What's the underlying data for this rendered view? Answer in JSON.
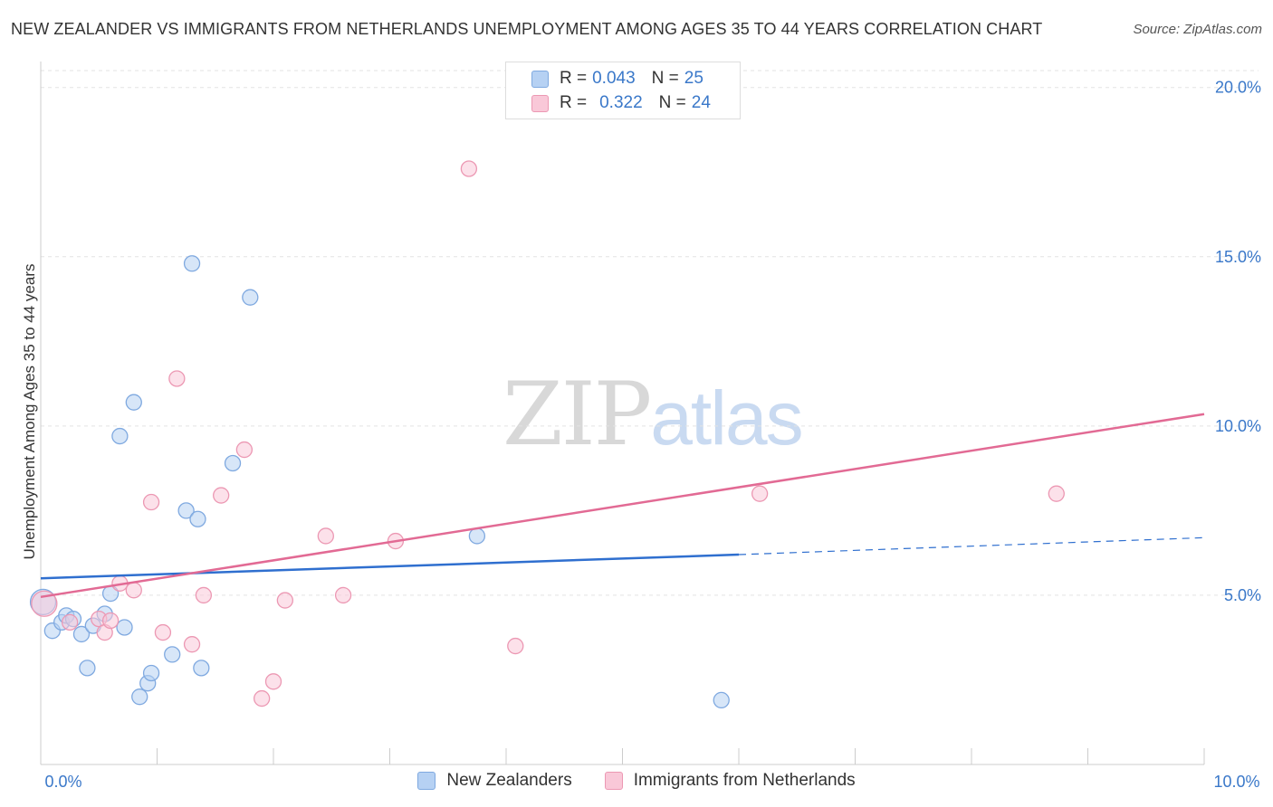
{
  "title": "NEW ZEALANDER VS IMMIGRANTS FROM NETHERLANDS UNEMPLOYMENT AMONG AGES 35 TO 44 YEARS CORRELATION CHART",
  "source": "Source: ZipAtlas.com",
  "watermark": {
    "part1": "ZIP",
    "part2": "atlas"
  },
  "legend": {
    "rows": [
      {
        "r_label": "R =",
        "r_value": "0.043",
        "n_label": "N =",
        "n_value": "25",
        "color": "#b6d1f3",
        "border": "#7fa9e0"
      },
      {
        "r_label": "R =",
        "r_value": "0.322",
        "n_label": "N =",
        "n_value": "24",
        "color": "#f9c8d8",
        "border": "#ec98b3"
      }
    ]
  },
  "chart_data": {
    "type": "scatter",
    "title": "NEW ZEALANDER VS IMMIGRANTS FROM NETHERLANDS UNEMPLOYMENT AMONG AGES 35 TO 44 YEARS CORRELATION CHART",
    "xlabel": "",
    "ylabel": "Unemployment Among Ages 35 to 44 years",
    "xlim": [
      0,
      10
    ],
    "ylim": [
      0,
      20.5
    ],
    "x_tick_labels": [
      "0.0%",
      "10.0%"
    ],
    "y_ticks": [
      5,
      10,
      15,
      20
    ],
    "y_tick_labels": [
      "5.0%",
      "10.0%",
      "15.0%",
      "20.0%"
    ],
    "grid": true,
    "series": [
      {
        "name": "New Zealanders",
        "color": "#b6d1f3",
        "stroke": "#7fa9e0",
        "trend_color": "#2f6fcf",
        "trend": {
          "x0": 0,
          "y0": 5.5,
          "x1": 6.0,
          "y1": 6.2,
          "dash_to_x": 10.0,
          "dash_to_y": 6.7
        },
        "points": [
          [
            0.02,
            4.8
          ],
          [
            0.1,
            3.95
          ],
          [
            0.18,
            4.2
          ],
          [
            0.22,
            4.4
          ],
          [
            0.28,
            4.3
          ],
          [
            0.35,
            3.85
          ],
          [
            0.4,
            2.85
          ],
          [
            0.45,
            4.1
          ],
          [
            0.55,
            4.45
          ],
          [
            0.6,
            5.05
          ],
          [
            0.68,
            9.7
          ],
          [
            0.72,
            4.05
          ],
          [
            0.8,
            10.7
          ],
          [
            0.85,
            2.0
          ],
          [
            0.92,
            2.4
          ],
          [
            0.95,
            2.7
          ],
          [
            1.13,
            3.25
          ],
          [
            1.25,
            7.5
          ],
          [
            1.3,
            14.8
          ],
          [
            1.35,
            7.25
          ],
          [
            1.38,
            2.85
          ],
          [
            1.65,
            8.9
          ],
          [
            1.8,
            13.8
          ],
          [
            3.75,
            6.75
          ],
          [
            5.85,
            1.9
          ]
        ]
      },
      {
        "name": "Immigrants from Netherlands",
        "color": "#f9c8d8",
        "stroke": "#ec98b3",
        "trend_color": "#e26a94",
        "trend": {
          "x0": 0,
          "y0": 4.95,
          "x1": 10.0,
          "y1": 10.35
        },
        "points": [
          [
            0.03,
            4.75
          ],
          [
            0.25,
            4.2
          ],
          [
            0.5,
            4.3
          ],
          [
            0.55,
            3.9
          ],
          [
            0.68,
            5.35
          ],
          [
            0.8,
            5.15
          ],
          [
            0.95,
            7.75
          ],
          [
            1.05,
            3.9
          ],
          [
            1.17,
            11.4
          ],
          [
            1.3,
            3.55
          ],
          [
            1.4,
            5.0
          ],
          [
            1.55,
            7.95
          ],
          [
            1.75,
            9.3
          ],
          [
            1.9,
            1.95
          ],
          [
            2.0,
            2.45
          ],
          [
            2.1,
            4.85
          ],
          [
            2.45,
            6.75
          ],
          [
            2.6,
            5.0
          ],
          [
            3.05,
            6.6
          ],
          [
            3.68,
            17.6
          ],
          [
            4.08,
            3.5
          ],
          [
            6.18,
            8.0
          ],
          [
            8.73,
            8.0
          ],
          [
            0.6,
            4.25
          ]
        ]
      }
    ],
    "legend_position": "top-center"
  }
}
